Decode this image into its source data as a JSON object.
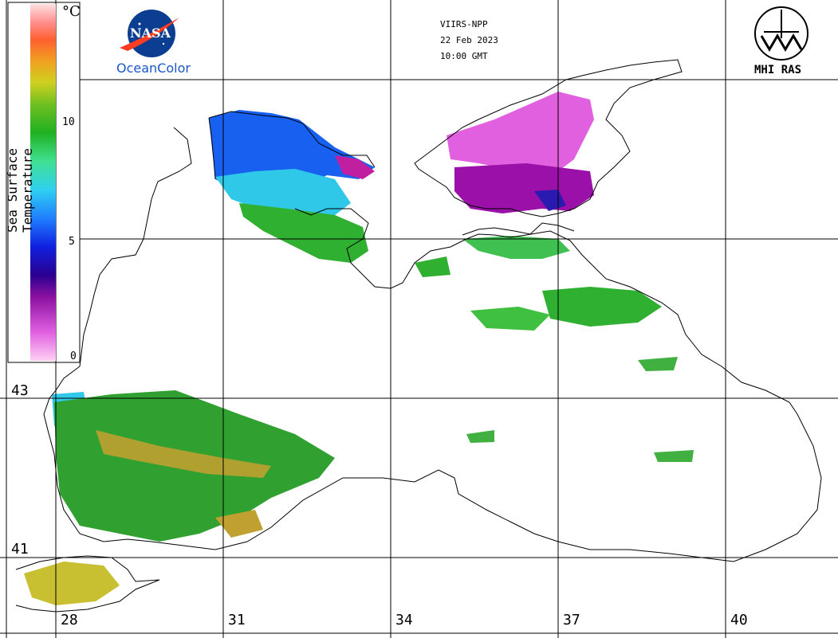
{
  "header": {
    "satellite": "VIIRS-NPP",
    "date": "22 Feb 2023",
    "time": "10:00 GMT"
  },
  "logos": {
    "nasa_text": "NASA",
    "oceancolor_text": "OceanColor",
    "institute_text": "MHI RAS"
  },
  "legend": {
    "title": "Sea Surface Temperature",
    "unit": "°C",
    "ticks": [
      "10",
      "5",
      "0"
    ],
    "colors": [
      "#ffd0f4",
      "#e060e0",
      "#8a10a0",
      "#2a0090",
      "#1020e0",
      "#2080ff",
      "#30d0f0",
      "#40e090",
      "#20b020",
      "#70c020",
      "#d0d020",
      "#f0a020",
      "#ff6030",
      "#ff9090",
      "#ffe0e0"
    ]
  },
  "longitude_labels": [
    "28",
    "31",
    "34",
    "37",
    "40"
  ],
  "latitude_labels": [
    "43",
    "41"
  ],
  "colors": {
    "coast": "#000000",
    "grid": "#000000",
    "nasa_blue": "#0b3d91",
    "nasa_red": "#fc3d21",
    "oceancolor_blue": "#1a56c8"
  }
}
